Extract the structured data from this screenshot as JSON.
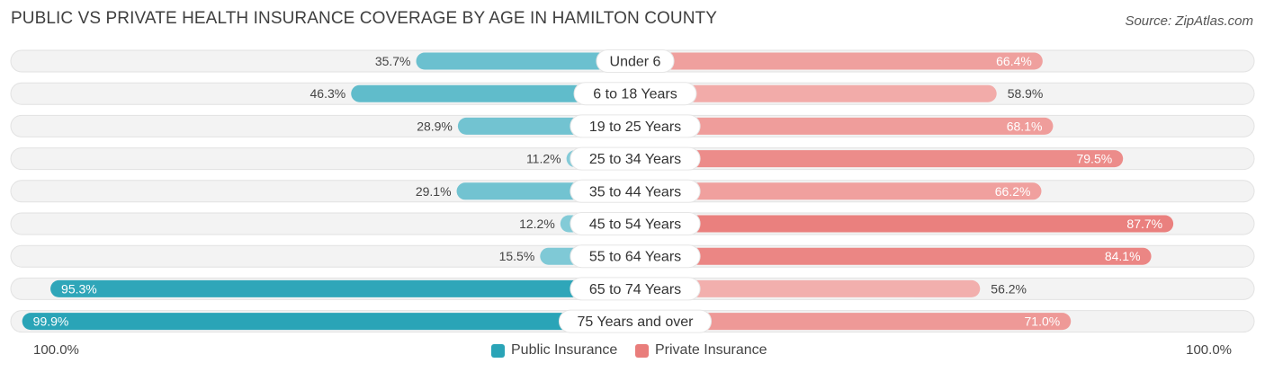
{
  "title": "PUBLIC VS PRIVATE HEALTH INSURANCE COVERAGE BY AGE IN HAMILTON COUNTY",
  "source": "Source: ZipAtlas.com",
  "colors": {
    "public": "#5ab4c6",
    "public_dark": "#2aa4b7",
    "private": "#f0a09e",
    "private_dark": "#e97d7b",
    "row_bg": "#f2f2f2"
  },
  "legend": {
    "public_label": "Public Insurance",
    "private_label": "Private Insurance",
    "axis_left": "100.0%",
    "axis_right": "100.0%"
  },
  "chart_data": {
    "type": "bar",
    "orientation": "diverging-horizontal",
    "title": "PUBLIC VS PRIVATE HEALTH INSURANCE COVERAGE BY AGE IN HAMILTON COUNTY",
    "categories": [
      "Under 6",
      "6 to 18 Years",
      "19 to 25 Years",
      "25 to 34 Years",
      "35 to 44 Years",
      "45 to 54 Years",
      "55 to 64 Years",
      "65 to 74 Years",
      "75 Years and over"
    ],
    "series": [
      {
        "name": "Public Insurance",
        "values": [
          35.7,
          46.3,
          28.9,
          11.2,
          29.1,
          12.2,
          15.5,
          95.3,
          99.9
        ],
        "labels": [
          "35.7%",
          "46.3%",
          "28.9%",
          "11.2%",
          "29.1%",
          "12.2%",
          "15.5%",
          "95.3%",
          "99.9%"
        ]
      },
      {
        "name": "Private Insurance",
        "values": [
          66.4,
          58.9,
          68.1,
          79.5,
          66.2,
          87.7,
          84.1,
          56.2,
          71.0
        ],
        "labels": [
          "66.4%",
          "58.9%",
          "68.1%",
          "79.5%",
          "66.2%",
          "87.7%",
          "84.1%",
          "56.2%",
          "71.0%"
        ]
      }
    ],
    "xlim": [
      -100,
      100
    ],
    "legend_position": "bottom-center"
  }
}
